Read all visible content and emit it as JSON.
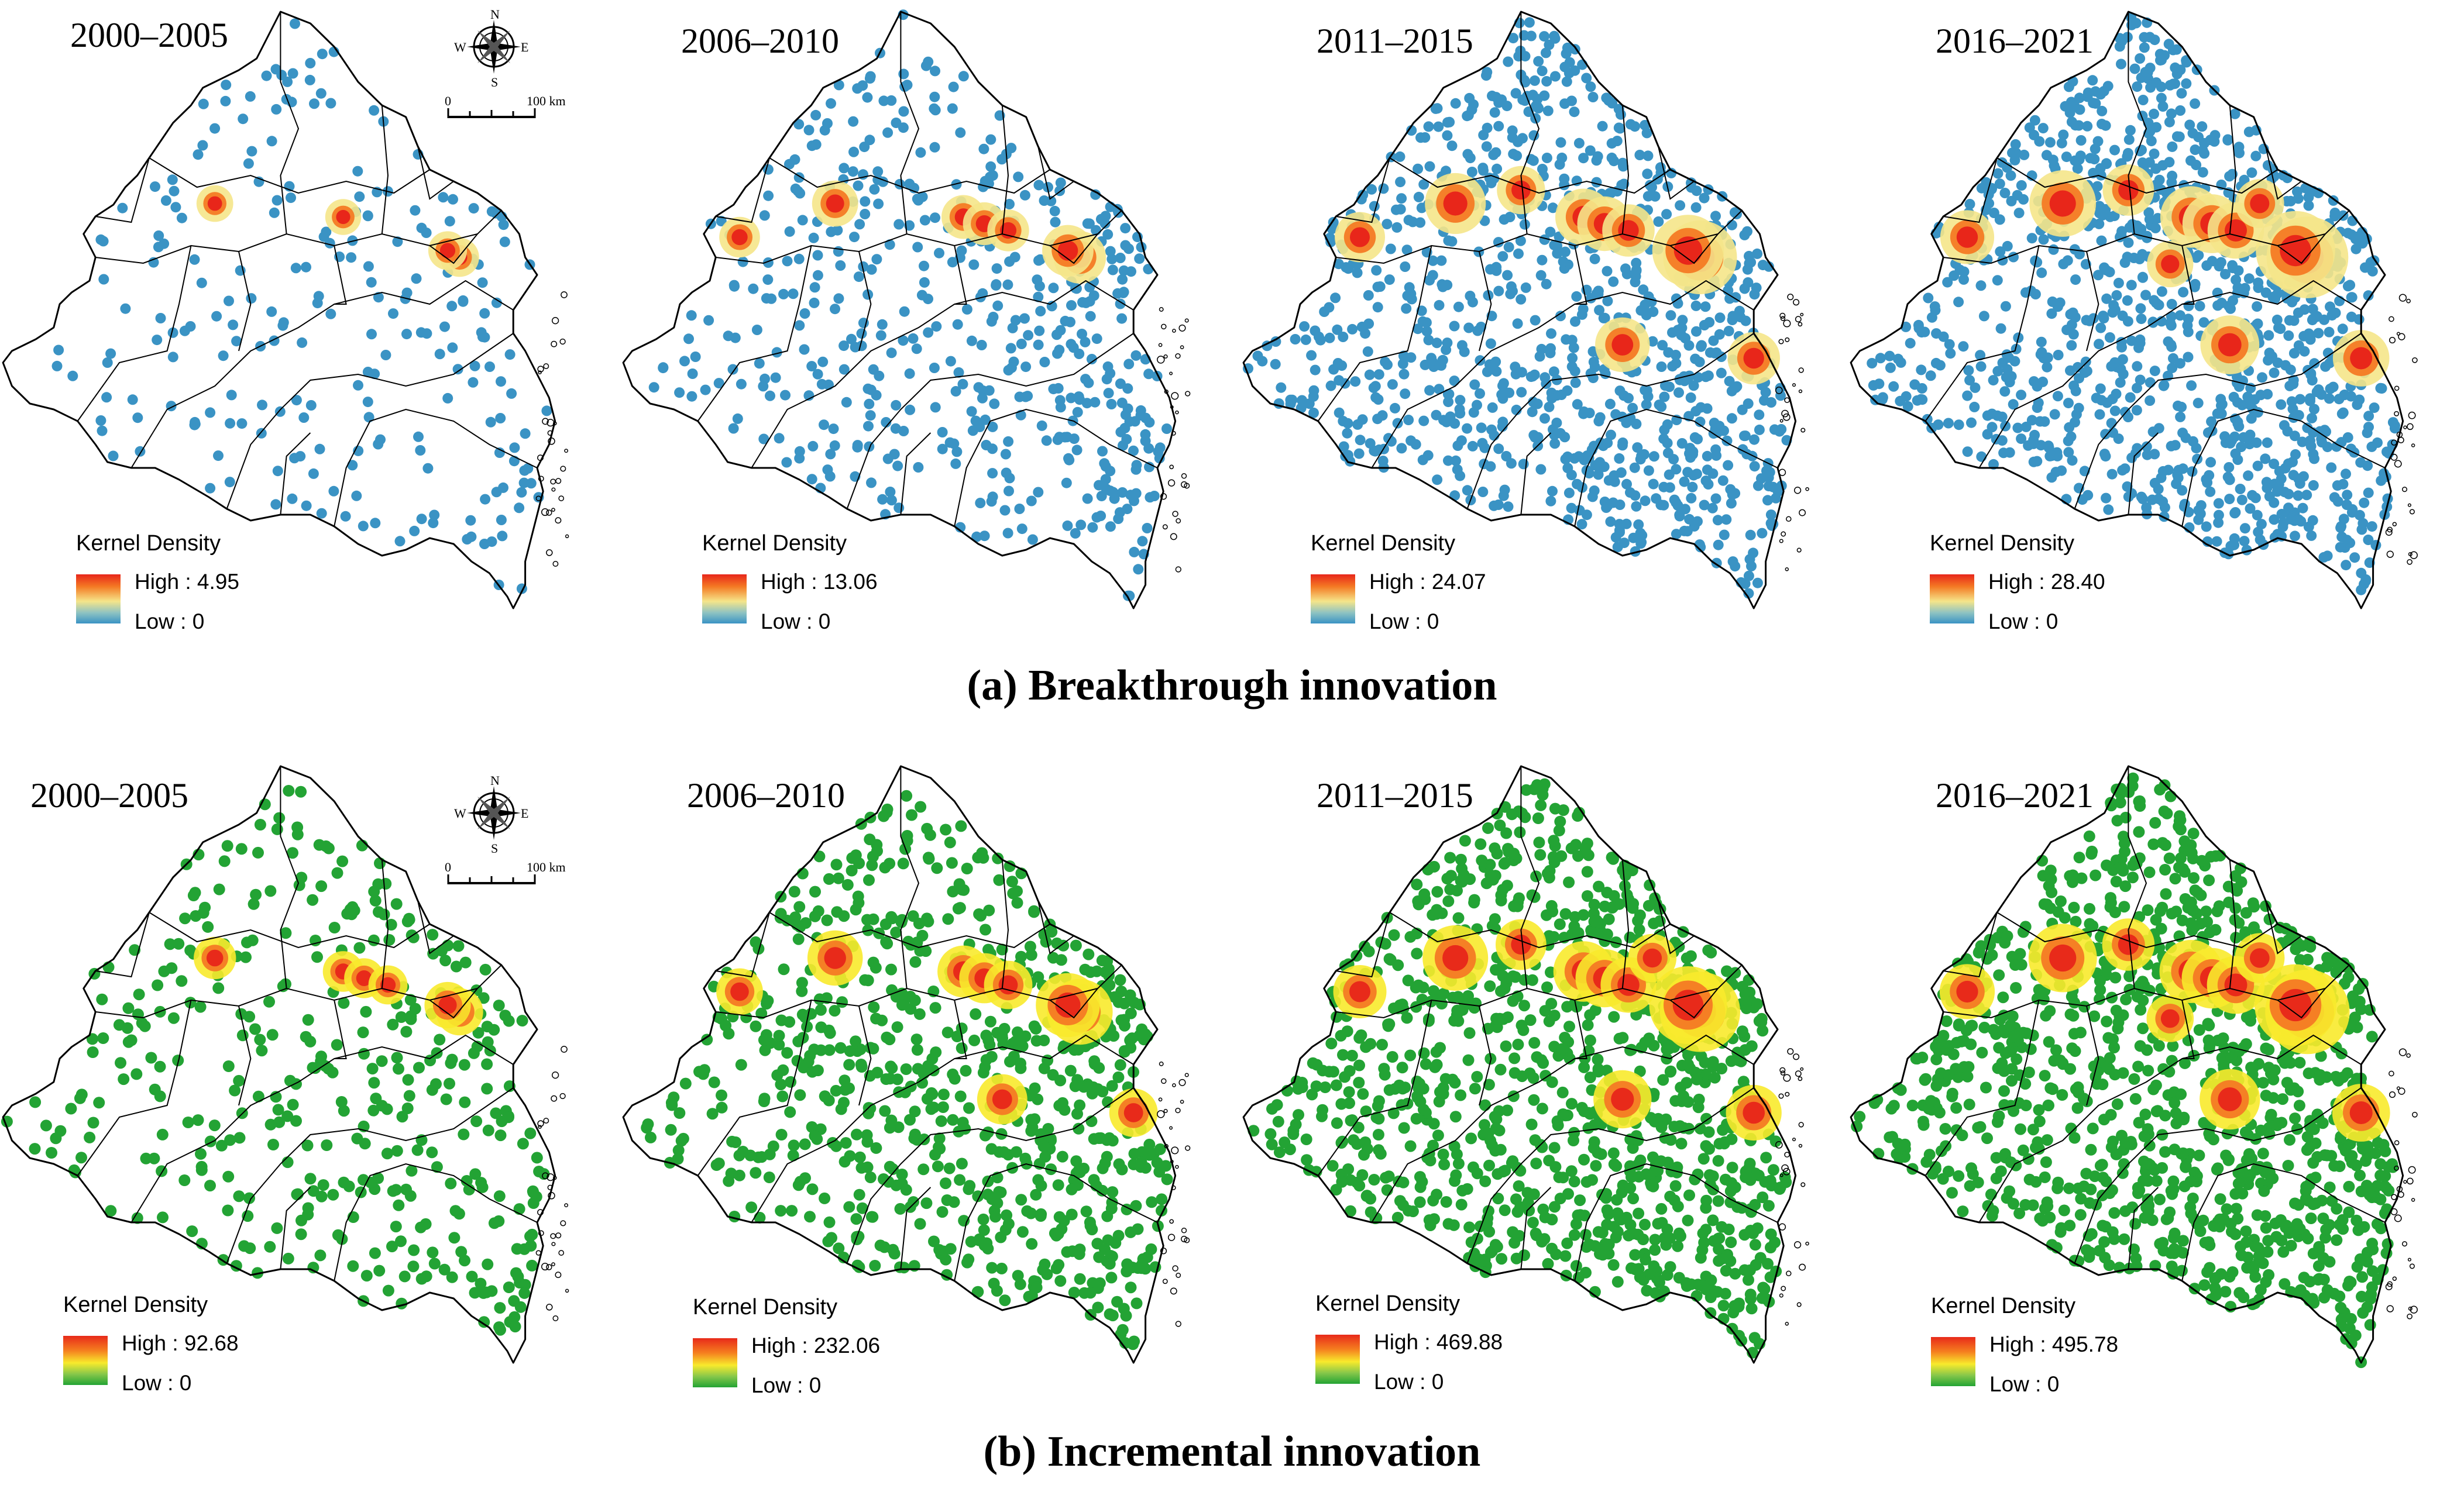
{
  "rows": [
    {
      "id": "breakthrough",
      "title": "(a) Breakthrough innovation",
      "low_color": "#3a93c4",
      "mid_color": "#f5e58a",
      "high_color": "#e8261a",
      "panels": [
        {
          "period": "2000–2005",
          "legend_title": "Kernel Density",
          "high": "High : 4.95",
          "low": "Low : 0",
          "density": 0.15
        },
        {
          "period": "2006–2010",
          "legend_title": "Kernel Density",
          "high": "High : 13.06",
          "low": "Low : 0",
          "density": 0.4
        },
        {
          "period": "2011–2015",
          "legend_title": "Kernel Density",
          "high": "High : 24.07",
          "low": "Low : 0",
          "density": 0.8
        },
        {
          "period": "2016–2021",
          "legend_title": "Kernel Density",
          "high": "High : 28.40",
          "low": "Low : 0",
          "density": 0.95
        }
      ]
    },
    {
      "id": "incremental",
      "title": "(b) Incremental innovation",
      "low_color": "#23a334",
      "mid_color": "#f8ea2c",
      "high_color": "#e82a1a",
      "panels": [
        {
          "period": "2000–2005",
          "legend_title": "Kernel Density",
          "high": "High : 92.68",
          "low": "Low : 0",
          "density": 0.3
        },
        {
          "period": "2006–2010",
          "legend_title": "Kernel Density",
          "high": "High : 232.06",
          "low": "Low : 0",
          "density": 0.65
        },
        {
          "period": "2011–2015",
          "legend_title": "Kernel Density",
          "high": "High : 469.88",
          "low": "Low : 0",
          "density": 0.92
        },
        {
          "period": "2016–2021",
          "legend_title": "Kernel Density",
          "high": "High : 495.78",
          "low": "Low : 0",
          "density": 1.0
        }
      ]
    }
  ],
  "compass": {
    "n": "N",
    "s": "S",
    "e": "E",
    "w": "W"
  },
  "scale_bar": {
    "start": "0",
    "end": "100 km"
  }
}
